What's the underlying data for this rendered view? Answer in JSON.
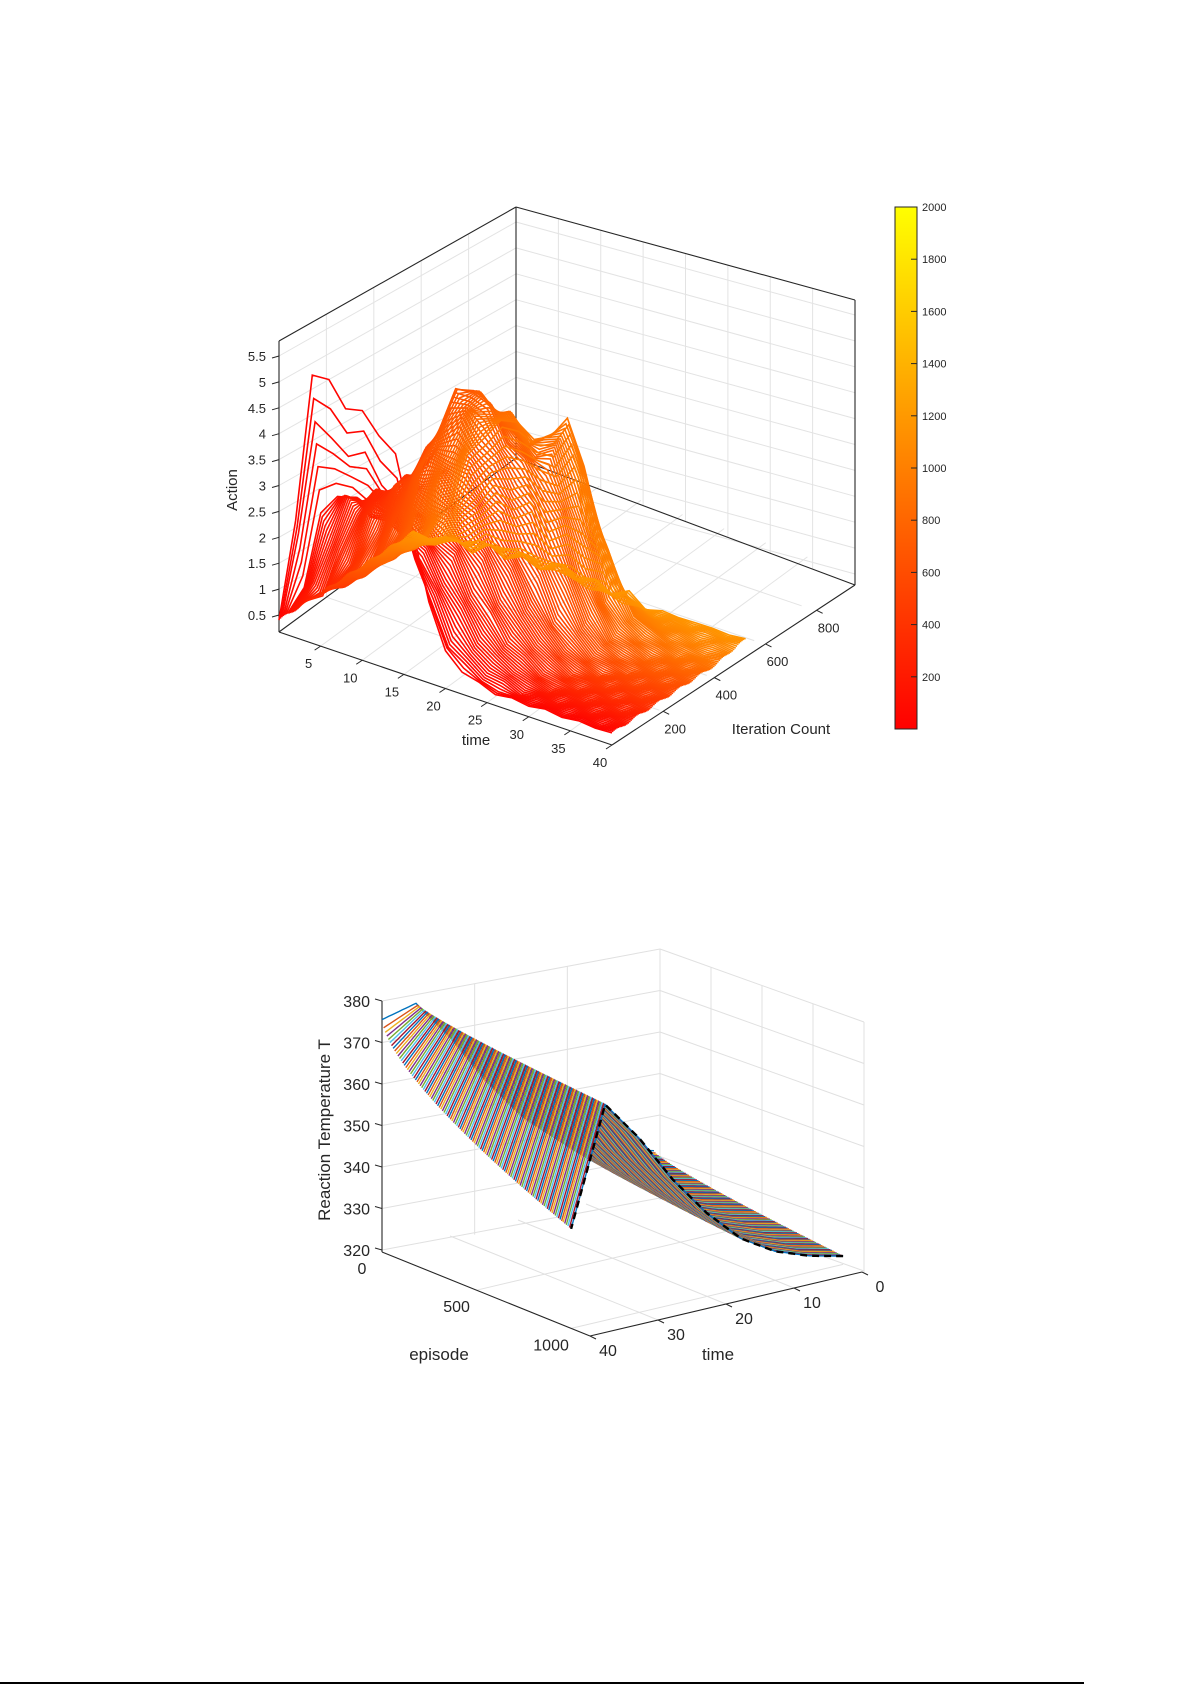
{
  "chart_data": [
    {
      "type": "line3d",
      "title": "",
      "xlabel": "time",
      "ylabel": "Iteration Count",
      "zlabel": "Action",
      "x_ticks": [
        5,
        10,
        15,
        20,
        25,
        30,
        35,
        40
      ],
      "y_ticks": [
        200,
        400,
        600,
        800
      ],
      "z_ticks": [
        0.5,
        1,
        1.5,
        2,
        2.5,
        3,
        3.5,
        4,
        4.5,
        5,
        5.5
      ],
      "xlim": [
        0,
        40
      ],
      "ylim": [
        0,
        950
      ],
      "zlim": [
        0,
        6
      ],
      "grid": true,
      "colorbar": {
        "colormap": "autumn",
        "range": [
          0,
          2000
        ],
        "ticks": [
          200,
          400,
          600,
          800,
          1000,
          1200,
          1400,
          1600,
          1800,
          2000
        ],
        "color_low": "#ff0000",
        "color_high": "#ffff00"
      },
      "series_description": "Action trajectories over time for each iteration, colored by iteration count (red early, orange later)",
      "representative_series": [
        {
          "iteration": 0,
          "x": [
            0,
            2,
            4,
            6,
            8,
            10,
            12,
            14,
            16,
            18,
            20,
            22,
            24,
            26,
            28,
            30,
            32,
            34,
            36,
            38,
            40
          ],
          "values": [
            0.5,
            2.5,
            5.5,
            5.4,
            5.1,
            5.0,
            4.8,
            4.4,
            3.2,
            1.8,
            1.0,
            0.7,
            0.6,
            0.5,
            0.5,
            0.5,
            0.5,
            0.5,
            0.5,
            0.5,
            0.5
          ]
        },
        {
          "iteration": 20,
          "x": [
            0,
            2,
            4,
            6,
            8,
            10,
            12,
            14,
            16,
            18,
            20,
            22,
            24,
            26,
            28,
            30,
            32,
            34,
            36,
            38,
            40
          ],
          "values": [
            0.5,
            2.3,
            4.5,
            4.3,
            4.1,
            4.2,
            3.8,
            3.4,
            2.6,
            1.7,
            1.1,
            0.8,
            0.6,
            0.5,
            0.5,
            0.5,
            0.5,
            0.5,
            0.5,
            0.5,
            0.5
          ]
        },
        {
          "iteration": 60,
          "x": [
            0,
            2,
            4,
            6,
            8,
            10,
            12,
            14,
            16,
            18,
            20,
            22,
            24,
            26,
            28,
            30,
            32,
            34,
            36,
            38,
            40
          ],
          "values": [
            0.5,
            1.2,
            2.6,
            3.2,
            3.1,
            3.0,
            2.9,
            2.8,
            2.4,
            1.9,
            1.3,
            0.9,
            0.7,
            0.6,
            0.5,
            0.5,
            0.5,
            0.5,
            0.5,
            0.5,
            0.5
          ]
        },
        {
          "iteration": 200,
          "x": [
            0,
            2,
            4,
            6,
            8,
            10,
            12,
            14,
            16,
            18,
            20,
            22,
            24,
            26,
            28,
            30,
            32,
            34,
            36,
            38,
            40
          ],
          "values": [
            0.5,
            0.8,
            1.6,
            2.6,
            3.0,
            3.1,
            3.0,
            2.9,
            2.7,
            2.4,
            1.9,
            1.4,
            1.0,
            0.8,
            0.6,
            0.5,
            0.5,
            0.5,
            0.5,
            0.5,
            0.5
          ]
        },
        {
          "iteration": 400,
          "x": [
            0,
            2,
            4,
            6,
            8,
            10,
            12,
            14,
            16,
            18,
            20,
            22,
            24,
            26,
            28,
            30,
            32,
            34,
            36,
            38,
            40
          ],
          "values": [
            0.5,
            0.6,
            1.0,
            1.8,
            2.8,
            3.3,
            3.6,
            3.7,
            3.5,
            3.2,
            2.8,
            2.2,
            1.6,
            1.1,
            0.8,
            0.6,
            0.5,
            0.5,
            0.5,
            0.5,
            0.5
          ]
        },
        {
          "iteration": 550,
          "x": [
            0,
            2,
            4,
            6,
            8,
            10,
            12,
            14,
            16,
            18,
            20,
            22,
            24,
            26,
            28,
            30,
            32,
            34,
            36,
            38,
            40
          ],
          "values": [
            0.5,
            0.6,
            0.9,
            1.6,
            2.9,
            3.8,
            4.6,
            4.8,
            4.5,
            4.0,
            3.6,
            3.2,
            2.6,
            1.8,
            1.1,
            0.7,
            0.6,
            0.5,
            0.5,
            0.5,
            0.5
          ]
        },
        {
          "iteration": 750,
          "x": [
            0,
            2,
            4,
            6,
            8,
            10,
            12,
            14,
            16,
            18,
            20,
            22,
            24,
            26,
            28,
            30,
            32,
            34,
            36,
            38,
            40
          ],
          "values": [
            0.5,
            0.6,
            0.8,
            1.2,
            1.9,
            2.8,
            3.4,
            3.7,
            3.9,
            3.6,
            3.8,
            4.3,
            3.4,
            2.3,
            1.4,
            0.9,
            0.7,
            0.6,
            0.5,
            0.5,
            0.5
          ]
        },
        {
          "iteration": 900,
          "x": [
            0,
            2,
            4,
            6,
            8,
            10,
            12,
            14,
            16,
            18,
            20,
            22,
            24,
            26,
            28,
            30,
            32,
            34,
            36,
            38,
            40
          ],
          "values": [
            0.5,
            0.5,
            0.6,
            0.7,
            0.7,
            0.8,
            0.8,
            0.8,
            0.8,
            0.8,
            0.8,
            0.7,
            0.7,
            0.7,
            0.6,
            0.6,
            0.6,
            0.6,
            0.6,
            0.6,
            0.6
          ]
        }
      ]
    },
    {
      "type": "line3d",
      "title": "",
      "xlabel": "episode",
      "ylabel": "time",
      "zlabel": "Reaction Temperature T",
      "x_ticks": [
        0,
        500,
        1000
      ],
      "y_ticks": [
        0,
        10,
        20,
        30,
        40
      ],
      "z_ticks": [
        320,
        330,
        340,
        350,
        360,
        370,
        380
      ],
      "xlim": [
        0,
        1100
      ],
      "ylim": [
        0,
        40
      ],
      "zlim": [
        320,
        380
      ],
      "grid": true,
      "series_description": "Reaction temperature trajectories for each episode (multicolored default palette); dashed black line marks reference trajectory at the last episode",
      "representative_series": [
        {
          "name": "episode 0",
          "time": [
            0,
            5,
            10,
            15,
            20,
            25,
            30,
            35,
            40
          ],
          "values": [
            329,
            331,
            334,
            339,
            346,
            356,
            368,
            378,
            376
          ]
        },
        {
          "name": "episode 1000",
          "time": [
            0,
            5,
            10,
            15,
            20,
            25,
            30,
            35,
            40
          ],
          "values": [
            322,
            324,
            327,
            332,
            340,
            350,
            362,
            372,
            344
          ]
        },
        {
          "name": "reference (dashed)",
          "time": [
            0,
            5,
            10,
            15,
            20,
            25,
            30,
            35,
            40
          ],
          "values": [
            322,
            324,
            327,
            332,
            340,
            350,
            362,
            372,
            344
          ]
        }
      ],
      "palette": [
        "#0072bd",
        "#d95319",
        "#edb120",
        "#7e2f8e",
        "#77ac30",
        "#4dbeee",
        "#a2142f"
      ],
      "reference_line": {
        "style": "dashed",
        "color": "#000000"
      }
    }
  ]
}
